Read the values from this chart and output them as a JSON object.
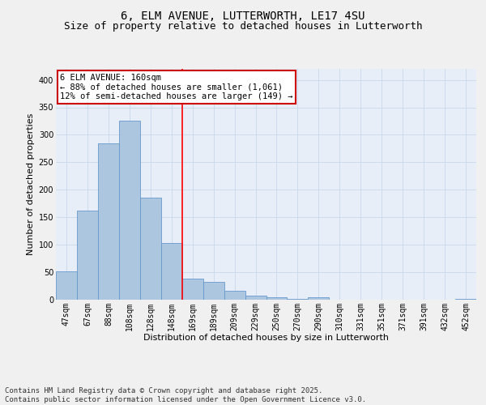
{
  "title_line1": "6, ELM AVENUE, LUTTERWORTH, LE17 4SU",
  "title_line2": "Size of property relative to detached houses in Lutterworth",
  "xlabel": "Distribution of detached houses by size in Lutterworth",
  "ylabel": "Number of detached properties",
  "categories": [
    "47sqm",
    "67sqm",
    "88sqm",
    "108sqm",
    "128sqm",
    "148sqm",
    "169sqm",
    "189sqm",
    "209sqm",
    "229sqm",
    "250sqm",
    "270sqm",
    "290sqm",
    "310sqm",
    "331sqm",
    "351sqm",
    "371sqm",
    "391sqm",
    "432sqm",
    "452sqm"
  ],
  "values": [
    52,
    162,
    285,
    325,
    185,
    103,
    38,
    33,
    16,
    7,
    4,
    1,
    4,
    0,
    0,
    0,
    0,
    0,
    0,
    2
  ],
  "bar_color": "#adc6e0",
  "bar_edge_color": "#6699cc",
  "grid_color": "#c8d8ea",
  "background_color": "#e8eef8",
  "fig_background_color": "#f0f0f0",
  "annotation_box_text": "6 ELM AVENUE: 160sqm\n← 88% of detached houses are smaller (1,061)\n12% of semi-detached houses are larger (149) →",
  "annotation_box_color": "#ffffff",
  "annotation_box_edge_color": "#cc0000",
  "red_line_x": 5.5,
  "ylim": [
    0,
    420
  ],
  "yticks": [
    0,
    50,
    100,
    150,
    200,
    250,
    300,
    350,
    400
  ],
  "footnote": "Contains HM Land Registry data © Crown copyright and database right 2025.\nContains public sector information licensed under the Open Government Licence v3.0.",
  "title_fontsize": 10,
  "subtitle_fontsize": 9,
  "axis_label_fontsize": 8,
  "tick_fontsize": 7,
  "annotation_fontsize": 7.5,
  "footnote_fontsize": 6.5
}
